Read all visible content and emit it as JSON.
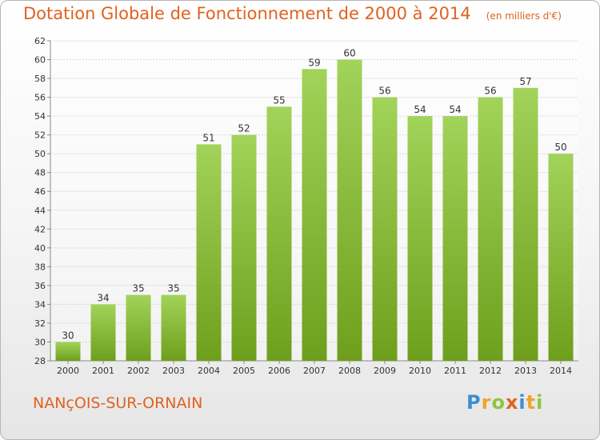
{
  "header": {
    "title": "Dotation Globale de Fonctionnement de 2000 à 2014",
    "subtitle": "(en milliers d'€)"
  },
  "footer": {
    "commune": "NANçOIS-SUR-ORNAIN",
    "logo_letters": [
      "P",
      "r",
      "o",
      "x",
      "i",
      "t",
      "i"
    ],
    "logo_colors": [
      "#3a8fd1",
      "#f0a22c",
      "#8cc63f",
      "#e0621f",
      "#3a8fd1",
      "#f0a22c",
      "#8cc63f"
    ]
  },
  "colors": {
    "bar_top": "#a2d35a",
    "bar_bottom": "#6e9f1c",
    "axis": "#8a8a8a",
    "grid": "#d2d2d2",
    "text": "#333333"
  },
  "chart_data": {
    "type": "bar",
    "categories": [
      "2000",
      "2001",
      "2002",
      "2003",
      "2004",
      "2005",
      "2006",
      "2007",
      "2008",
      "2009",
      "2010",
      "2011",
      "2012",
      "2013",
      "2014"
    ],
    "values": [
      30,
      34,
      35,
      35,
      51,
      52,
      55,
      59,
      60,
      56,
      54,
      54,
      56,
      57,
      50
    ],
    "ylim": [
      28,
      62
    ],
    "yticks": [
      28,
      30,
      32,
      34,
      36,
      38,
      40,
      42,
      44,
      46,
      48,
      50,
      52,
      54,
      56,
      58,
      60,
      62
    ],
    "grid": true
  }
}
